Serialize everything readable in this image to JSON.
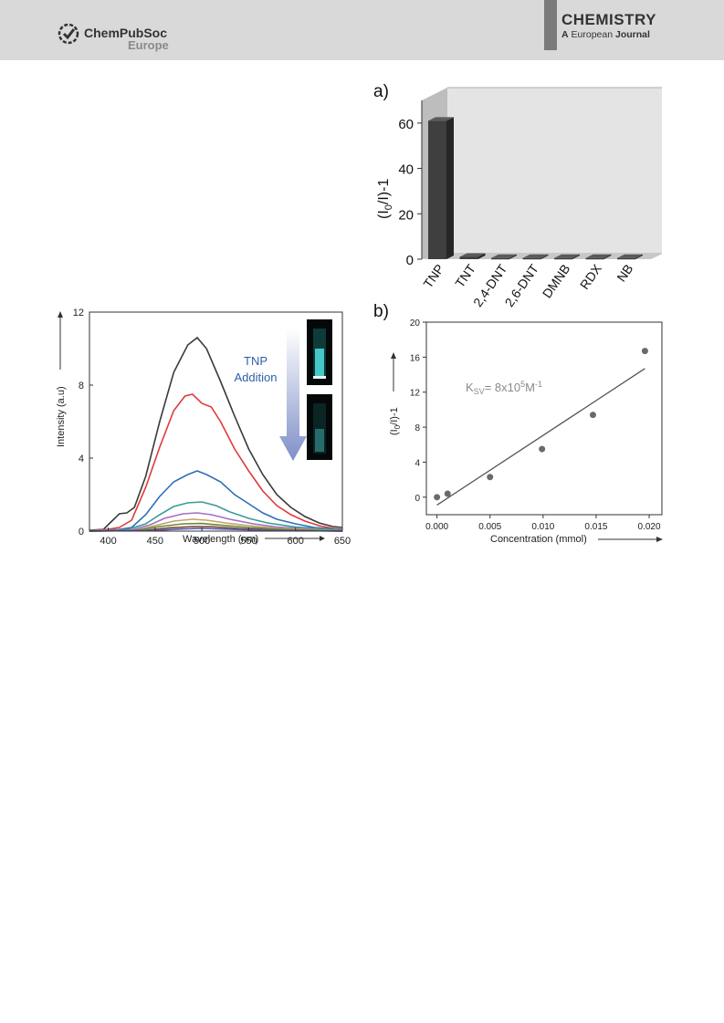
{
  "header": {
    "brand_name": "ChemPubSoc",
    "brand_sub": "Europe",
    "journal_title": "CHEMISTRY",
    "journal_sub_a": "A",
    "journal_sub_eu": "European",
    "journal_sub_j": "Journal",
    "colors": {
      "banner": "#d9d9d9",
      "bar": "#7a7a7a"
    }
  },
  "chart_data": [
    {
      "type": "line",
      "panel": "spectrum",
      "xlabel": "Wavelength (nm)",
      "ylabel": "Intensity (a.u)",
      "xlim": [
        380,
        650
      ],
      "ylim": [
        0,
        12
      ],
      "xticks": [
        "400",
        "450",
        "500",
        "550",
        "600",
        "650"
      ],
      "yticks": [
        "0",
        "4",
        "8",
        "12"
      ],
      "annotation": {
        "line1": "TNP",
        "line2": "Addition",
        "color": "#2e5fa8"
      },
      "series": [
        {
          "color": "#3a3a3a",
          "points": [
            [
              380,
              0.05
            ],
            [
              395,
              0.1
            ],
            [
              405,
              0.6
            ],
            [
              412,
              0.95
            ],
            [
              420,
              1.0
            ],
            [
              428,
              1.3
            ],
            [
              440,
              3.0
            ],
            [
              455,
              6.0
            ],
            [
              470,
              8.7
            ],
            [
              485,
              10.2
            ],
            [
              495,
              10.6
            ],
            [
              505,
              10.0
            ],
            [
              520,
              8.2
            ],
            [
              535,
              6.3
            ],
            [
              550,
              4.5
            ],
            [
              565,
              3.1
            ],
            [
              580,
              2.0
            ],
            [
              595,
              1.3
            ],
            [
              610,
              0.8
            ],
            [
              625,
              0.45
            ],
            [
              640,
              0.25
            ],
            [
              650,
              0.2
            ]
          ]
        },
        {
          "color": "#e03a3a",
          "points": [
            [
              380,
              0.03
            ],
            [
              400,
              0.1
            ],
            [
              412,
              0.2
            ],
            [
              425,
              0.6
            ],
            [
              440,
              2.4
            ],
            [
              455,
              4.6
            ],
            [
              470,
              6.6
            ],
            [
              482,
              7.4
            ],
            [
              490,
              7.5
            ],
            [
              500,
              7.0
            ],
            [
              510,
              6.8
            ],
            [
              520,
              6.0
            ],
            [
              535,
              4.5
            ],
            [
              550,
              3.3
            ],
            [
              565,
              2.2
            ],
            [
              580,
              1.4
            ],
            [
              595,
              0.9
            ],
            [
              610,
              0.55
            ],
            [
              625,
              0.3
            ],
            [
              640,
              0.15
            ],
            [
              650,
              0.1
            ]
          ]
        },
        {
          "color": "#2f6fb5",
          "points": [
            [
              380,
              0.02
            ],
            [
              410,
              0.08
            ],
            [
              425,
              0.2
            ],
            [
              440,
              0.9
            ],
            [
              455,
              1.9
            ],
            [
              470,
              2.7
            ],
            [
              485,
              3.1
            ],
            [
              495,
              3.3
            ],
            [
              505,
              3.1
            ],
            [
              520,
              2.7
            ],
            [
              535,
              2.0
            ],
            [
              550,
              1.5
            ],
            [
              565,
              1.0
            ],
            [
              580,
              0.65
            ],
            [
              600,
              0.4
            ],
            [
              620,
              0.2
            ],
            [
              650,
              0.08
            ]
          ]
        },
        {
          "color": "#3a9a9a",
          "points": [
            [
              380,
              0.01
            ],
            [
              420,
              0.08
            ],
            [
              440,
              0.4
            ],
            [
              455,
              0.9
            ],
            [
              470,
              1.35
            ],
            [
              485,
              1.55
            ],
            [
              500,
              1.6
            ],
            [
              515,
              1.4
            ],
            [
              530,
              1.05
            ],
            [
              550,
              0.7
            ],
            [
              570,
              0.45
            ],
            [
              600,
              0.22
            ],
            [
              650,
              0.05
            ]
          ]
        },
        {
          "color": "#a070c0",
          "points": [
            [
              380,
              0.01
            ],
            [
              425,
              0.06
            ],
            [
              445,
              0.35
            ],
            [
              460,
              0.7
            ],
            [
              480,
              0.95
            ],
            [
              495,
              1.0
            ],
            [
              510,
              0.9
            ],
            [
              530,
              0.65
            ],
            [
              555,
              0.4
            ],
            [
              580,
              0.22
            ],
            [
              620,
              0.08
            ],
            [
              650,
              0.03
            ]
          ]
        },
        {
          "color": "#c9a060",
          "points": [
            [
              380,
              0.01
            ],
            [
              430,
              0.05
            ],
            [
              450,
              0.3
            ],
            [
              470,
              0.55
            ],
            [
              490,
              0.65
            ],
            [
              505,
              0.6
            ],
            [
              525,
              0.45
            ],
            [
              550,
              0.3
            ],
            [
              580,
              0.15
            ],
            [
              650,
              0.02
            ]
          ]
        },
        {
          "color": "#6a8a3a",
          "points": [
            [
              380,
              0.0
            ],
            [
              430,
              0.04
            ],
            [
              455,
              0.25
            ],
            [
              480,
              0.4
            ],
            [
              500,
              0.42
            ],
            [
              520,
              0.33
            ],
            [
              550,
              0.2
            ],
            [
              590,
              0.08
            ],
            [
              650,
              0.01
            ]
          ]
        },
        {
          "color": "#7a4a3a",
          "points": [
            [
              380,
              0.0
            ],
            [
              440,
              0.05
            ],
            [
              465,
              0.18
            ],
            [
              490,
              0.25
            ],
            [
              510,
              0.24
            ],
            [
              540,
              0.14
            ],
            [
              580,
              0.05
            ],
            [
              650,
              0.0
            ]
          ]
        },
        {
          "color": "#5a5ab0",
          "points": [
            [
              380,
              0.0
            ],
            [
              450,
              0.04
            ],
            [
              480,
              0.12
            ],
            [
              500,
              0.15
            ],
            [
              525,
              0.11
            ],
            [
              570,
              0.04
            ],
            [
              650,
              0.0
            ]
          ]
        }
      ]
    },
    {
      "type": "bar",
      "panel": "a",
      "label": "a)",
      "categories": [
        "TNP",
        "TNT",
        "2,4-DNT",
        "2,6-DNT",
        "DMNB",
        "RDX",
        "NB"
      ],
      "values": [
        61,
        1,
        0.5,
        0.5,
        0.5,
        0.5,
        0.5
      ],
      "ylabel_main": "(I",
      "ylabel_sub1": "0",
      "ylabel_mid": "/I)-1",
      "ylim": [
        0,
        70
      ],
      "yticks": [
        "0",
        "20",
        "40",
        "60"
      ],
      "colors": {
        "bar": "#3f3f3f",
        "floor": "#c8c8c8",
        "wall": "#e4e4e4",
        "side": "#bdbdbd"
      }
    },
    {
      "type": "scatter",
      "panel": "b",
      "label": "b)",
      "x": [
        0.0,
        0.001,
        0.005,
        0.0099,
        0.0147,
        0.0196
      ],
      "y": [
        0.0,
        0.4,
        2.3,
        5.5,
        9.4,
        16.7
      ],
      "fit": {
        "x0": 0.0,
        "y0": -0.9,
        "x1": 0.0196,
        "y1": 14.7
      },
      "xlabel": "Concentration (mmol)",
      "ylabel_main": "(I",
      "ylabel_sub1": "0",
      "ylabel_mid": "/I)-1",
      "ksv_k": "K",
      "ksv_sub": "SV",
      "ksv_val": "= 8x10",
      "ksv_exp": "5",
      "ksv_unit": "M",
      "ksv_unit_exp": "-1",
      "xlim": [
        -0.001,
        0.0212
      ],
      "ylim": [
        -2,
        20
      ],
      "xticks": [
        "0.000",
        "0.005",
        "0.010",
        "0.015",
        "0.020"
      ],
      "yticks": [
        "0",
        "4",
        "8",
        "12",
        "16",
        "20"
      ],
      "colors": {
        "points": "#6a6a6a",
        "fit": "#555555",
        "annotation": "#8a8a8a"
      }
    }
  ]
}
